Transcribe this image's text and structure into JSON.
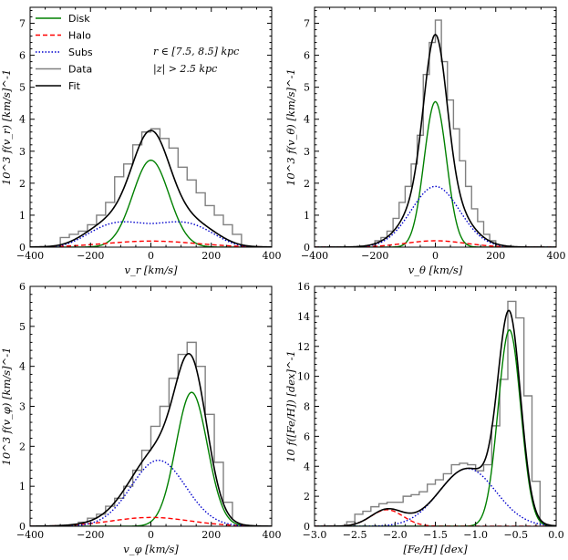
{
  "legend": {
    "items": [
      {
        "label": "Disk",
        "color": "#008000",
        "style": "solid"
      },
      {
        "label": "Halo",
        "color": "#ff0000",
        "style": "dashed"
      },
      {
        "label": "Subs",
        "color": "#0000cd",
        "style": "dotted"
      },
      {
        "label": "Data",
        "color": "#808080",
        "style": "solid"
      },
      {
        "label": "Fit",
        "color": "#000000",
        "style": "solid"
      }
    ],
    "placement": "top-left of first panel"
  },
  "annotation": {
    "line1": "r ∈ [7.5, 8.5] kpc",
    "line2": "|z| > 2.5 kpc"
  },
  "chart_data": [
    {
      "type": "line",
      "panel": "top-left",
      "xlabel": "v_r [km/s]",
      "ylabel": "10^3 f(v_r) [km/s]^-1",
      "xlim": [
        -400,
        400
      ],
      "ylim": [
        0,
        7.5
      ],
      "xticks": [
        -400,
        -200,
        0,
        200,
        400
      ],
      "yticks": [
        0,
        1,
        2,
        3,
        4,
        5,
        6,
        7
      ],
      "series": [
        {
          "name": "Disk",
          "kind": "gauss",
          "mu": 0,
          "sigma": 60,
          "amp": 2.72
        },
        {
          "name": "Halo",
          "kind": "gauss",
          "mu": 0,
          "sigma": 150,
          "amp": 0.19
        },
        {
          "name": "Subs",
          "kind": "flat",
          "mu": 0,
          "sigma": 150,
          "amp": 0.78
        }
      ],
      "histogram": {
        "edges": [
          -300,
          -270,
          -240,
          -210,
          -180,
          -150,
          -120,
          -90,
          -60,
          -30,
          0,
          30,
          60,
          90,
          120,
          150,
          180,
          210,
          240,
          270,
          300
        ],
        "values": [
          0.3,
          0.4,
          0.5,
          0.7,
          1.0,
          1.4,
          2.2,
          2.6,
          3.2,
          3.6,
          3.7,
          3.4,
          3.1,
          2.5,
          2.1,
          1.7,
          1.3,
          1.0,
          0.7,
          0.4
        ]
      }
    },
    {
      "type": "line",
      "panel": "top-right",
      "xlabel": "v_θ [km/s]",
      "ylabel": "10^3 f(v_θ) [km/s]^-1",
      "xlim": [
        -400,
        400
      ],
      "ylim": [
        0,
        7.5
      ],
      "xticks": [
        -400,
        -200,
        0,
        200,
        400
      ],
      "yticks": [
        0,
        1,
        2,
        3,
        4,
        5,
        6,
        7
      ],
      "series": [
        {
          "name": "Disk",
          "kind": "gauss",
          "mu": 0,
          "sigma": 37,
          "amp": 4.55
        },
        {
          "name": "Halo",
          "kind": "gauss",
          "mu": 0,
          "sigma": 100,
          "amp": 0.2
        },
        {
          "name": "Subs",
          "kind": "gauss",
          "mu": 0,
          "sigma": 80,
          "amp": 1.9
        }
      ],
      "histogram": {
        "edges": [
          -200,
          -180,
          -160,
          -140,
          -120,
          -100,
          -80,
          -60,
          -40,
          -20,
          0,
          20,
          40,
          60,
          80,
          100,
          120,
          140,
          160,
          180,
          200
        ],
        "values": [
          0.2,
          0.3,
          0.5,
          0.9,
          1.4,
          1.9,
          2.6,
          3.5,
          5.4,
          6.4,
          7.1,
          5.8,
          4.6,
          3.7,
          2.7,
          1.9,
          1.2,
          0.8,
          0.4,
          0.2
        ]
      }
    },
    {
      "type": "line",
      "panel": "bottom-left",
      "xlabel": "v_φ [km/s]",
      "ylabel": "10^3 f(v_φ) [km/s]^-1",
      "xlim": [
        -400,
        400
      ],
      "ylim": [
        0,
        6
      ],
      "xticks": [
        -400,
        -200,
        0,
        200,
        400
      ],
      "yticks": [
        0,
        1,
        2,
        3,
        4,
        5,
        6
      ],
      "series": [
        {
          "name": "Disk",
          "kind": "gauss",
          "mu": 135,
          "sigma": 52,
          "amp": 3.35
        },
        {
          "name": "Halo",
          "kind": "gauss",
          "mu": 0,
          "sigma": 130,
          "amp": 0.22
        },
        {
          "name": "Subs",
          "kind": "gauss",
          "mu": 25,
          "sigma": 90,
          "amp": 1.65
        }
      ],
      "histogram": {
        "edges": [
          -240,
          -210,
          -180,
          -150,
          -120,
          -90,
          -60,
          -30,
          0,
          30,
          60,
          90,
          120,
          150,
          180,
          210,
          240,
          270
        ],
        "values": [
          0.1,
          0.2,
          0.3,
          0.5,
          0.7,
          1.0,
          1.4,
          1.9,
          2.5,
          3.0,
          3.7,
          4.3,
          4.6,
          4.0,
          2.8,
          1.6,
          0.6,
          0.2
        ]
      }
    },
    {
      "type": "line",
      "panel": "bottom-right",
      "xlabel": "[Fe/H] [dex]",
      "ylabel": "10 f([Fe/H]) [dex]^-1",
      "xlim": [
        -3.0,
        0.0
      ],
      "ylim": [
        0,
        16
      ],
      "xticks": [
        -3.0,
        -2.5,
        -2.0,
        -1.5,
        -1.0,
        -0.5,
        0.0
      ],
      "yticks": [
        0,
        2,
        4,
        6,
        8,
        10,
        12,
        14,
        16
      ],
      "series": [
        {
          "name": "Disk",
          "kind": "gauss",
          "mu": -0.58,
          "sigma": 0.14,
          "amp": 13.1
        },
        {
          "name": "Halo",
          "kind": "gauss",
          "mu": -2.1,
          "sigma": 0.2,
          "amp": 1.1
        },
        {
          "name": "Subs",
          "kind": "gauss",
          "mu": -1.1,
          "sigma": 0.35,
          "amp": 3.85
        }
      ],
      "histogram": {
        "edges": [
          -2.6,
          -2.5,
          -2.4,
          -2.3,
          -2.2,
          -2.1,
          -2.0,
          -1.9,
          -1.8,
          -1.7,
          -1.6,
          -1.5,
          -1.4,
          -1.3,
          -1.2,
          -1.1,
          -1.0,
          -0.9,
          -0.8,
          -0.7,
          -0.6,
          -0.5,
          -0.4,
          -0.3,
          -0.2
        ],
        "values": [
          0.3,
          0.8,
          1.0,
          1.3,
          1.5,
          1.6,
          1.6,
          2.0,
          2.1,
          2.3,
          2.8,
          3.1,
          3.5,
          4.1,
          4.2,
          4.1,
          3.7,
          4.1,
          6.7,
          9.8,
          15.0,
          13.9,
          8.7,
          3.0,
          0.0
        ]
      }
    }
  ]
}
